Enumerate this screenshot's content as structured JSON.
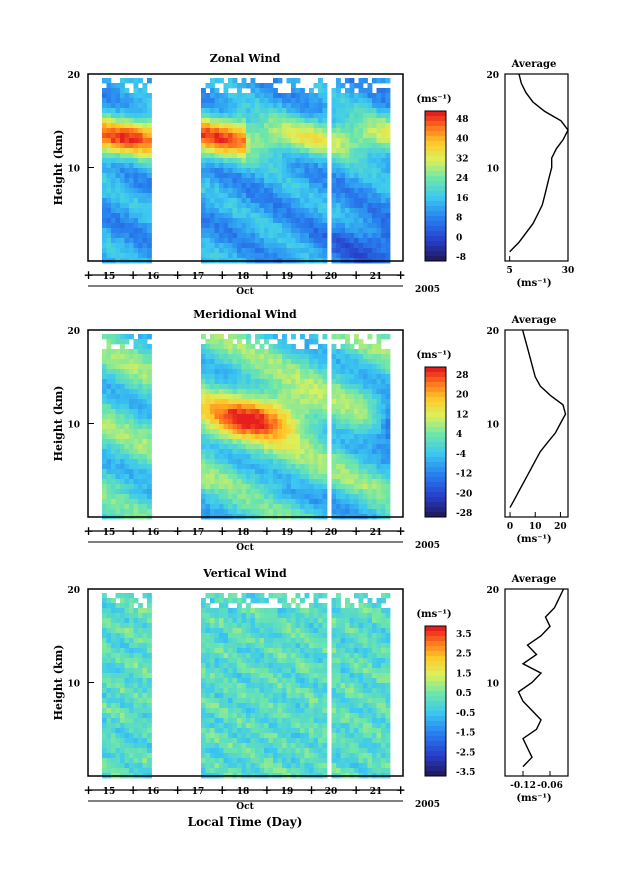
{
  "chart_data": [
    {
      "type": "heatmap",
      "title": "Zonal Wind",
      "ylabel": "Height (km)",
      "ylim": [
        0,
        20
      ],
      "yticks": [
        "10",
        "20"
      ],
      "x_days": [
        "15",
        "16",
        "17",
        "18",
        "19",
        "20",
        "21"
      ],
      "x_month": "Oct",
      "x_year": "2005",
      "data_gap": [
        "16",
        "17"
      ],
      "colorbar": {
        "unit": "(ms⁻¹)",
        "labels": [
          "48",
          "40",
          "32",
          "24",
          "16",
          "8",
          "0",
          "-8"
        ],
        "range": [
          -8,
          52
        ]
      },
      "pattern": "strong westerly jet (40-48) near 12-14 km, weak/negative winds below 5 km on Oct 19-21",
      "average_profile": {
        "title": "Average",
        "xlabel": "(ms⁻¹)",
        "xticks": [
          "5",
          "30"
        ],
        "xlim": [
          3,
          30
        ],
        "yticks": [
          "10",
          "20"
        ],
        "height": [
          1,
          2,
          3,
          4,
          5,
          6,
          7,
          8,
          9,
          10,
          11,
          12,
          13,
          14,
          15,
          16,
          17,
          18,
          19,
          20
        ],
        "value": [
          5,
          9,
          12,
          15,
          17,
          19,
          20,
          21,
          22,
          23,
          23,
          25,
          28,
          30,
          27,
          20,
          15,
          12,
          10,
          9
        ]
      }
    },
    {
      "type": "heatmap",
      "title": "Meridional Wind",
      "ylabel": "Height (km)",
      "ylim": [
        0,
        20
      ],
      "yticks": [
        "10",
        "20"
      ],
      "x_days": [
        "15",
        "16",
        "17",
        "18",
        "19",
        "20",
        "21"
      ],
      "x_month": "Oct",
      "x_year": "2005",
      "data_gap": [
        "16",
        "17"
      ],
      "colorbar": {
        "unit": "(ms⁻¹)",
        "labels": [
          "28",
          "20",
          "12",
          "4",
          "-4",
          "-12",
          "-20",
          "-28"
        ],
        "range": [
          -32,
          32
        ]
      },
      "pattern": "strong positive core (28+) near 10-12 km on Oct 17-19, negative core near 10 km on Oct 21",
      "average_profile": {
        "title": "Average",
        "xlabel": "(ms⁻¹)",
        "xticks": [
          "0",
          "10",
          "20"
        ],
        "xlim": [
          -2,
          23
        ],
        "yticks": [
          "10",
          "20"
        ],
        "height": [
          1,
          2,
          3,
          4,
          5,
          6,
          7,
          8,
          9,
          10,
          11,
          12,
          13,
          14,
          15,
          16,
          17,
          18,
          19,
          20
        ],
        "value": [
          0,
          2,
          4,
          6,
          8,
          10,
          12,
          15,
          18,
          20,
          22,
          21,
          16,
          12,
          10,
          9,
          8,
          7,
          6,
          5
        ]
      }
    },
    {
      "type": "heatmap",
      "title": "Vertical Wind",
      "ylabel": "Height (km)",
      "ylim": [
        0,
        20
      ],
      "yticks": [
        "10",
        "20"
      ],
      "x_days": [
        "15",
        "16",
        "17",
        "18",
        "19",
        "20",
        "21"
      ],
      "x_month": "Oct",
      "x_year": "2005",
      "xlabel": "Local Time (Day)",
      "data_gap": [
        "16",
        "17"
      ],
      "colorbar": {
        "unit": "(ms⁻¹)",
        "labels": [
          "3.5",
          "2.5",
          "1.5",
          "0.5",
          "-0.5",
          "-1.5",
          "-2.5",
          "-3.5"
        ],
        "range": [
          -4,
          4
        ]
      },
      "pattern": "values mostly near zero (-0.5 to 0.5) throughout",
      "average_profile": {
        "title": "Average",
        "xlabel": "(ms⁻¹)",
        "xticks": [
          "-0.12",
          "-0.06"
        ],
        "xlim": [
          -0.16,
          -0.02
        ],
        "yticks": [
          "10",
          "20"
        ],
        "height": [
          1,
          2,
          3,
          4,
          5,
          6,
          7,
          8,
          9,
          10,
          11,
          12,
          13,
          14,
          15,
          16,
          17,
          18,
          19,
          20
        ],
        "value": [
          -0.12,
          -0.1,
          -0.11,
          -0.12,
          -0.09,
          -0.08,
          -0.1,
          -0.12,
          -0.13,
          -0.1,
          -0.08,
          -0.12,
          -0.09,
          -0.11,
          -0.08,
          -0.06,
          -0.07,
          -0.05,
          -0.04,
          -0.03
        ]
      }
    }
  ]
}
